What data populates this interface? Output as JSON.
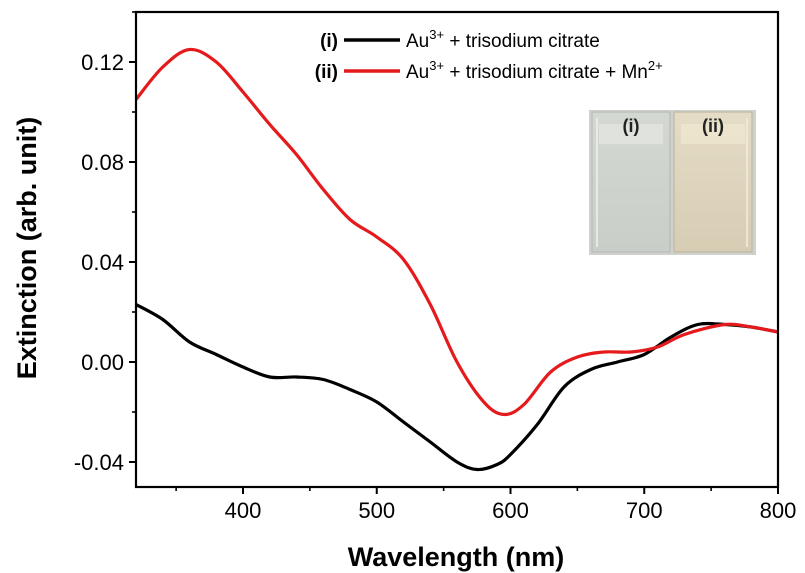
{
  "chart_data": {
    "type": "line",
    "xlabel": "Wavelength (nm)",
    "ylabel": "Extinction (arb. unit)",
    "xlim": [
      320,
      800
    ],
    "ylim": [
      -0.05,
      0.14
    ],
    "xticks": [
      400,
      500,
      600,
      700,
      800
    ],
    "yticks": [
      -0.04,
      0.0,
      0.04,
      0.08,
      0.12
    ],
    "ytick_labels": [
      "-0.04",
      "0.00",
      "0.04",
      "0.08",
      "0.12"
    ],
    "grid": false,
    "legend_position": "top-right",
    "series": [
      {
        "id": "(i)",
        "name": "Au3+ + trisodium citrate",
        "name_base": "Au",
        "name_sup": "3+",
        "name_rest": " + trisodium citrate",
        "color": "#000000",
        "x": [
          320,
          340,
          360,
          380,
          400,
          420,
          440,
          460,
          480,
          500,
          520,
          540,
          560,
          575,
          590,
          600,
          620,
          640,
          660,
          680,
          700,
          720,
          740,
          760,
          780,
          800
        ],
        "y": [
          0.023,
          0.017,
          0.008,
          0.003,
          -0.002,
          -0.006,
          -0.006,
          -0.007,
          -0.011,
          -0.016,
          -0.024,
          -0.032,
          -0.04,
          -0.043,
          -0.041,
          -0.037,
          -0.025,
          -0.01,
          -0.003,
          0.0,
          0.003,
          0.01,
          0.015,
          0.015,
          0.014,
          0.012
        ]
      },
      {
        "id": "(ii)",
        "name": "Au3+ + trisodium citrate + Mn2+",
        "name_base": "Au",
        "name_sup": "3+",
        "name_rest": " + trisodium citrate + Mn",
        "name_sup2": "2+",
        "color": "#e41a1c",
        "x": [
          320,
          340,
          360,
          380,
          400,
          420,
          440,
          460,
          480,
          500,
          520,
          540,
          560,
          580,
          595,
          610,
          630,
          650,
          670,
          690,
          710,
          730,
          760,
          780,
          800
        ],
        "y": [
          0.105,
          0.118,
          0.125,
          0.12,
          0.108,
          0.095,
          0.083,
          0.069,
          0.057,
          0.05,
          0.041,
          0.023,
          0.0,
          -0.016,
          -0.021,
          -0.017,
          -0.004,
          0.002,
          0.004,
          0.004,
          0.006,
          0.011,
          0.015,
          0.014,
          0.012
        ]
      }
    ],
    "inset": {
      "labels": [
        "(i)",
        "(ii)"
      ]
    }
  }
}
